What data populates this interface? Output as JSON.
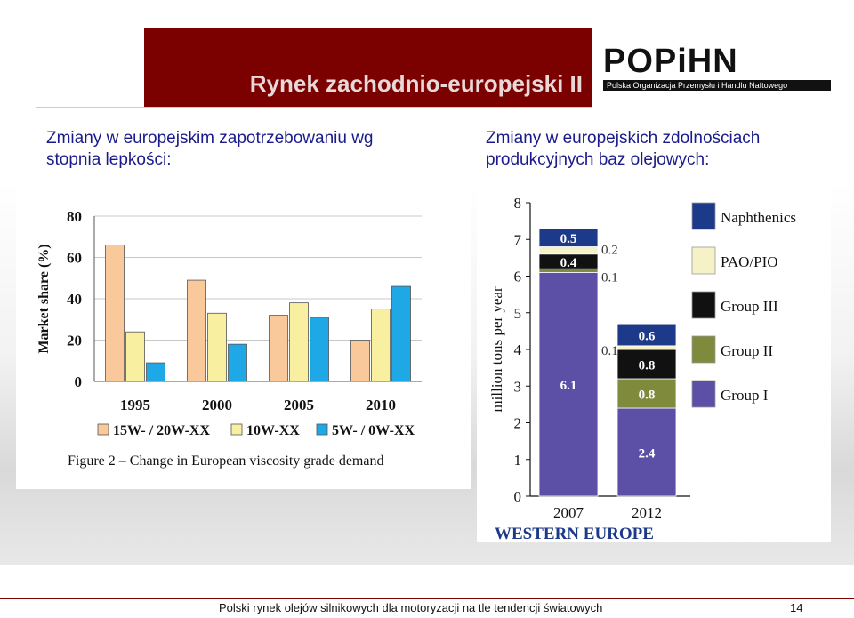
{
  "header": {
    "title": "Rynek zachodnio-europejski II",
    "logo_text": "POPiHN",
    "logo_subtitle": "Polska Organizacja Przemysłu i Handlu Naftowego"
  },
  "captions": {
    "left": "Zmiany w europejskim zapotrzebowaniu wg stopnia lepkości:",
    "right": "Zmiany w europejskich zdolnościach produkcyjnych baz olejowych:"
  },
  "footer": {
    "text": "Polski rynek olejów silnikowych dla motoryzacji  na tle tendencji światowych",
    "page": "14"
  },
  "colors": {
    "title_bg": "#7b0000",
    "caption": "#1a1a8c"
  },
  "chart_data": [
    {
      "type": "bar",
      "categories": [
        "1995",
        "2000",
        "2005",
        "2010"
      ],
      "series": [
        {
          "name": "15W- / 20W-XX",
          "values": [
            66,
            49,
            32,
            20
          ],
          "color": "#f9c89b"
        },
        {
          "name": "10W-XX",
          "values": [
            24,
            33,
            38,
            35
          ],
          "color": "#f8f0a0"
        },
        {
          "name": "5W- / 0W-XX",
          "values": [
            9,
            18,
            31,
            46
          ],
          "color": "#1fa8e6"
        }
      ],
      "ylabel": "Market share (%)",
      "ylim": [
        0,
        80
      ],
      "yticks": [
        0,
        20,
        40,
        60,
        80
      ],
      "title": "Figure 2 – Change in European viscosity grade demand",
      "grid": true,
      "legend": "bottom"
    },
    {
      "type": "bar",
      "stacked": true,
      "categories": [
        "2007",
        "2012"
      ],
      "series": [
        {
          "name": "Group I",
          "values": [
            6.1,
            2.4
          ],
          "color": "#5b4fa6"
        },
        {
          "name": "Group II",
          "values": [
            0.1,
            0.8
          ],
          "color": "#7f8a3c"
        },
        {
          "name": "Group III",
          "values": [
            0.4,
            0.8
          ],
          "color": "#111111"
        },
        {
          "name": "PAO/PIO",
          "values": [
            0.2,
            0.1
          ],
          "color": "#f5f2c8"
        },
        {
          "name": "Naphthenics",
          "values": [
            0.5,
            0.6
          ],
          "color": "#1d3a8a"
        }
      ],
      "segment_labels": {
        "2007": [
          "6.1",
          "0.1",
          "0.4",
          "0.2",
          "0.5"
        ],
        "2012": [
          "2.4",
          "0.8",
          "0.8",
          "0.1",
          "0.6"
        ]
      },
      "ylabel": "million tons per year",
      "ylim": [
        0,
        8
      ],
      "yticks": [
        0,
        1,
        2,
        3,
        4,
        5,
        6,
        7,
        8
      ],
      "title": "WESTERN EUROPE",
      "legend": "right"
    }
  ]
}
